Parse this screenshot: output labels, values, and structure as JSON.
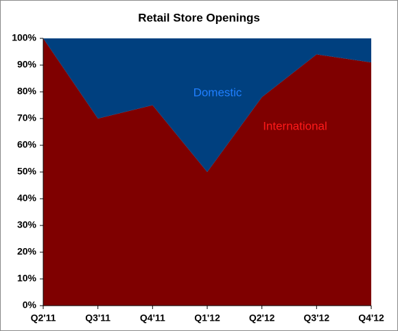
{
  "chart_data": {
    "type": "stacked_area",
    "title": "Retail Store Openings",
    "categories": [
      "Q2'11",
      "Q3'11",
      "Q4'11",
      "Q1'12",
      "Q2'12",
      "Q3'12",
      "Q4'12"
    ],
    "series": [
      {
        "name": "International",
        "color": "#7f0000",
        "values": [
          100,
          70,
          75,
          50,
          78,
          94,
          91
        ]
      },
      {
        "name": "Domestic",
        "color": "#00407f",
        "values": [
          0,
          30,
          25,
          50,
          22,
          6,
          9
        ]
      }
    ],
    "ylim": [
      0,
      100
    ],
    "yticks": [
      {
        "value": 0,
        "label": "0%"
      },
      {
        "value": 10,
        "label": "10%"
      },
      {
        "value": 20,
        "label": "20%"
      },
      {
        "value": 30,
        "label": "30%"
      },
      {
        "value": 40,
        "label": "40%"
      },
      {
        "value": 50,
        "label": "50%"
      },
      {
        "value": 60,
        "label": "60%"
      },
      {
        "value": 70,
        "label": "70%"
      },
      {
        "value": 80,
        "label": "80%"
      },
      {
        "value": 90,
        "label": "90%"
      },
      {
        "value": 100,
        "label": "100%"
      }
    ],
    "grid": false
  }
}
